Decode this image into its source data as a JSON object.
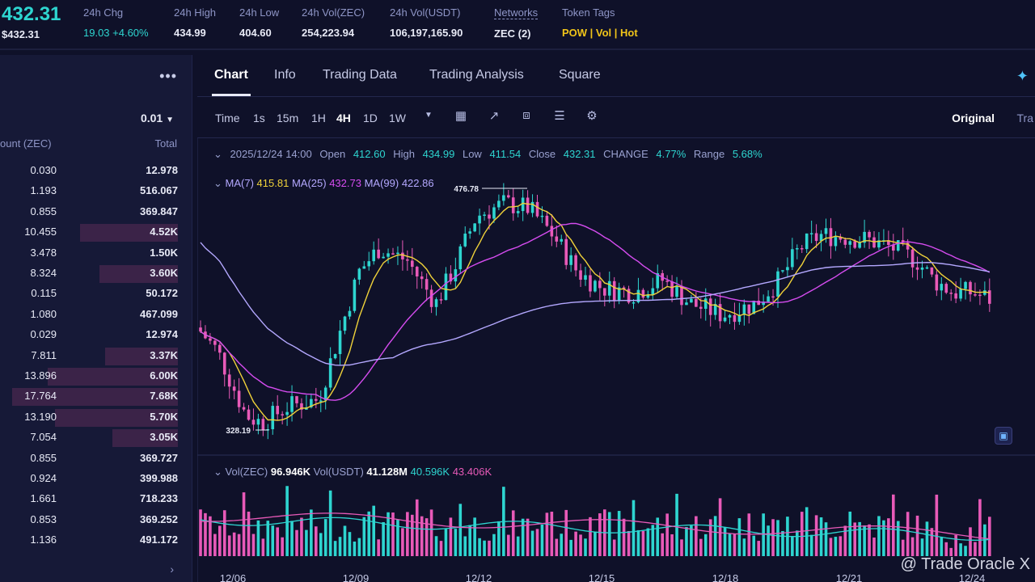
{
  "ticker": {
    "price": "432.31",
    "price_usd": "$432.31"
  },
  "stats": [
    {
      "label": "24h Chg",
      "value": "19.03 +4.60%"
    },
    {
      "label": "24h High",
      "value": "434.99"
    },
    {
      "label": "24h Low",
      "value": "404.60"
    },
    {
      "label": "24h Vol(ZEC)",
      "value": "254,223.94"
    },
    {
      "label": "24h Vol(USDT)",
      "value": "106,197,165.90"
    },
    {
      "label": "Networks",
      "value": "ZEC (2)"
    },
    {
      "label": "Token Tags",
      "value": "POW | Vol | Hot"
    }
  ],
  "orderbook": {
    "menu_icon": "more-dots-icon",
    "precision": "0.01",
    "col_amount": "ount (ZEC)",
    "col_total": "Total",
    "rows": [
      {
        "amount": "0.030",
        "total": "12.978",
        "depth": 0.0
      },
      {
        "amount": "1.193",
        "total": "516.067",
        "depth": 0.0
      },
      {
        "amount": "0.855",
        "total": "369.847",
        "depth": 0.0
      },
      {
        "amount": "10.455",
        "total": "4.52K",
        "depth": 0.55
      },
      {
        "amount": "3.478",
        "total": "1.50K",
        "depth": 0.0
      },
      {
        "amount": "8.324",
        "total": "3.60K",
        "depth": 0.44
      },
      {
        "amount": "0.115",
        "total": "50.172",
        "depth": 0.0
      },
      {
        "amount": "1.080",
        "total": "467.099",
        "depth": 0.0
      },
      {
        "amount": "0.029",
        "total": "12.974",
        "depth": 0.0
      },
      {
        "amount": "7.811",
        "total": "3.37K",
        "depth": 0.41
      },
      {
        "amount": "13.896",
        "total": "6.00K",
        "depth": 0.73
      },
      {
        "amount": "17.764",
        "total": "7.68K",
        "depth": 0.93
      },
      {
        "amount": "13.190",
        "total": "5.70K",
        "depth": 0.69
      },
      {
        "amount": "7.054",
        "total": "3.05K",
        "depth": 0.37
      },
      {
        "amount": "0.855",
        "total": "369.727",
        "depth": 0.0
      },
      {
        "amount": "0.924",
        "total": "399.988",
        "depth": 0.0
      },
      {
        "amount": "1.661",
        "total": "718.233",
        "depth": 0.0
      },
      {
        "amount": "0.853",
        "total": "369.252",
        "depth": 0.0
      },
      {
        "amount": "1.136",
        "total": "491.172",
        "depth": 0.0
      }
    ]
  },
  "tabs": [
    "Chart",
    "Info",
    "Trading Data",
    "Trading Analysis",
    "Square"
  ],
  "toolbar": {
    "intervals": [
      "Time",
      "1s",
      "15m",
      "1H",
      "4H",
      "1D",
      "1W"
    ],
    "active_interval": "4H",
    "icons": [
      "dropdown-icon",
      "calendar-icon",
      "indicator-icon",
      "candle-type-icon",
      "settings-sliders-icon",
      "gear-icon"
    ],
    "original": "Original",
    "tradingview": "Tra"
  },
  "ohlc": {
    "date": "2025/12/24 14:00",
    "open_label": "Open",
    "open": "412.60",
    "high_label": "High",
    "high": "434.99",
    "low_label": "Low",
    "low": "411.54",
    "close_label": "Close",
    "close": "432.31",
    "change_label": "CHANGE",
    "change": "4.77%",
    "range_label": "Range",
    "range": "5.68%"
  },
  "ma": {
    "ma7_label": "MA(7)",
    "ma7": "415.81",
    "ma25_label": "MA(25)",
    "ma25": "432.73",
    "ma99_label": "MA(99)",
    "ma99": "422.86"
  },
  "volume": {
    "zec_label": "Vol(ZEC)",
    "zec": "96.946K",
    "usdt_label": "Vol(USDT)",
    "usdt": "41.128M",
    "ma1": "40.596K",
    "ma2": "43.406K"
  },
  "chart_data": {
    "type": "candlestick",
    "xlabels": [
      "12/06",
      "12/09",
      "12/12",
      "12/15",
      "12/18",
      "12/21",
      "12/24"
    ],
    "high_marker": "476.78",
    "low_marker": "328.19",
    "colors": {
      "up": "#2ed5d0",
      "down": "#e85ab8",
      "ma7": "#f0d23a",
      "ma25": "#d64cf0",
      "ma99": "#b4a8ff"
    }
  },
  "watermark": "@ Trade Oracle X"
}
